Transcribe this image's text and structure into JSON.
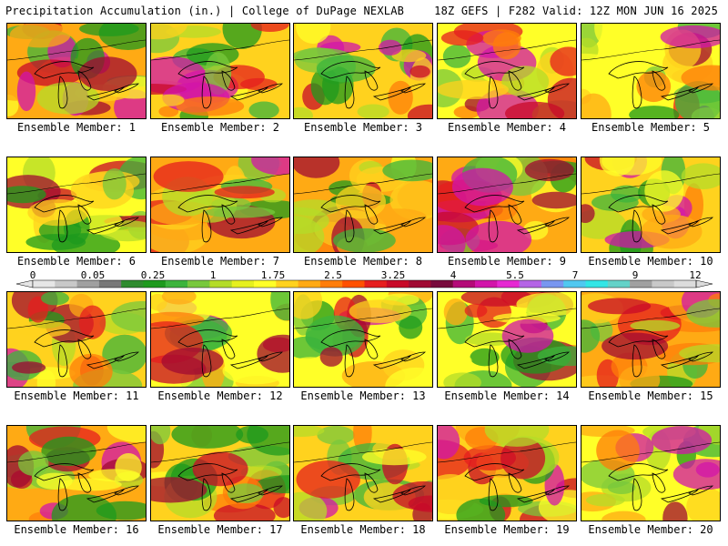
{
  "header": {
    "left": "Precipitation Accumulation (in.) | College of DuPage NEXLAB",
    "right": "18Z GEFS | F282 Valid: 12Z MON JUN 16 2025"
  },
  "members": [
    {
      "label": "Ensemble Member: 1"
    },
    {
      "label": "Ensemble Member: 2"
    },
    {
      "label": "Ensemble Member: 3"
    },
    {
      "label": "Ensemble Member: 4"
    },
    {
      "label": "Ensemble Member: 5"
    },
    {
      "label": "Ensemble Member: 6"
    },
    {
      "label": "Ensemble Member: 7"
    },
    {
      "label": "Ensemble Member: 8"
    },
    {
      "label": "Ensemble Member: 9"
    },
    {
      "label": "Ensemble Member: 10"
    },
    {
      "label": "Ensemble Member: 11"
    },
    {
      "label": "Ensemble Member: 12"
    },
    {
      "label": "Ensemble Member: 13"
    },
    {
      "label": "Ensemble Member: 14"
    },
    {
      "label": "Ensemble Member: 15"
    },
    {
      "label": "Ensemble Member: 16"
    },
    {
      "label": "Ensemble Member: 17"
    },
    {
      "label": "Ensemble Member: 18"
    },
    {
      "label": "Ensemble Member: 19"
    },
    {
      "label": "Ensemble Member: 20"
    }
  ],
  "colorbar": {
    "tick_labels": [
      "0",
      "0.05",
      "0.25",
      "1",
      "1.75",
      "2.5",
      "3.25",
      "4",
      "5.5",
      "7",
      "9",
      "12"
    ],
    "colors": [
      "#e6e6e6",
      "#c8c8c8",
      "#a0a0a0",
      "#787878",
      "#2e8b2e",
      "#1e9a1e",
      "#3cb43c",
      "#78c83c",
      "#b4dc28",
      "#e6f01e",
      "#ffff28",
      "#ffd21e",
      "#ffaa14",
      "#ff7d0a",
      "#ff5000",
      "#e61e1e",
      "#c80a28",
      "#a00a32",
      "#780a3c",
      "#b40a78",
      "#d214aa",
      "#e628d2",
      "#b464e6",
      "#7896f0",
      "#50c8f0",
      "#32e6e6",
      "#64d2c8",
      "#a0a0a0",
      "#c8c8c8",
      "#dcdcdc"
    ]
  }
}
